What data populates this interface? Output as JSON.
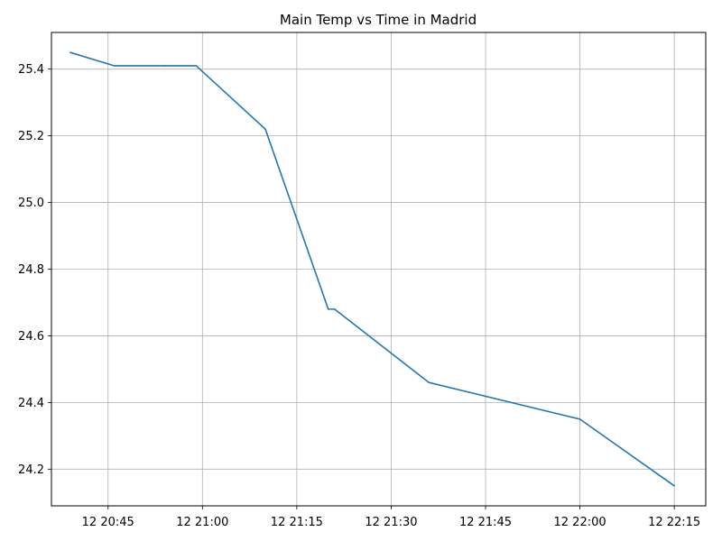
{
  "chart_data": {
    "type": "line",
    "title": "Main Temp vs Time in Madrid",
    "xlabel": "",
    "ylabel": "",
    "x_tick_labels": [
      "12 20:45",
      "12 21:00",
      "12 21:15",
      "12 21:30",
      "12 21:45",
      "12 22:00",
      "12 22:15"
    ],
    "y_tick_labels": [
      "24.2",
      "24.4",
      "24.6",
      "24.8",
      "25.0",
      "25.2",
      "25.4"
    ],
    "xlim": [
      "12 20:36",
      "12 22:20"
    ],
    "ylim": [
      24.09,
      25.51
    ],
    "grid": true,
    "series": [
      {
        "color": "#1f77b4",
        "x": [
          "12 20:39",
          "12 20:46",
          "12 20:54",
          "12 20:59",
          "12 21:10",
          "12 21:20",
          "12 21:21",
          "12 21:36",
          "12 22:00",
          "12 22:15"
        ],
        "y": [
          25.45,
          25.41,
          25.41,
          25.41,
          25.22,
          24.68,
          24.68,
          24.46,
          24.35,
          24.15
        ]
      }
    ]
  }
}
